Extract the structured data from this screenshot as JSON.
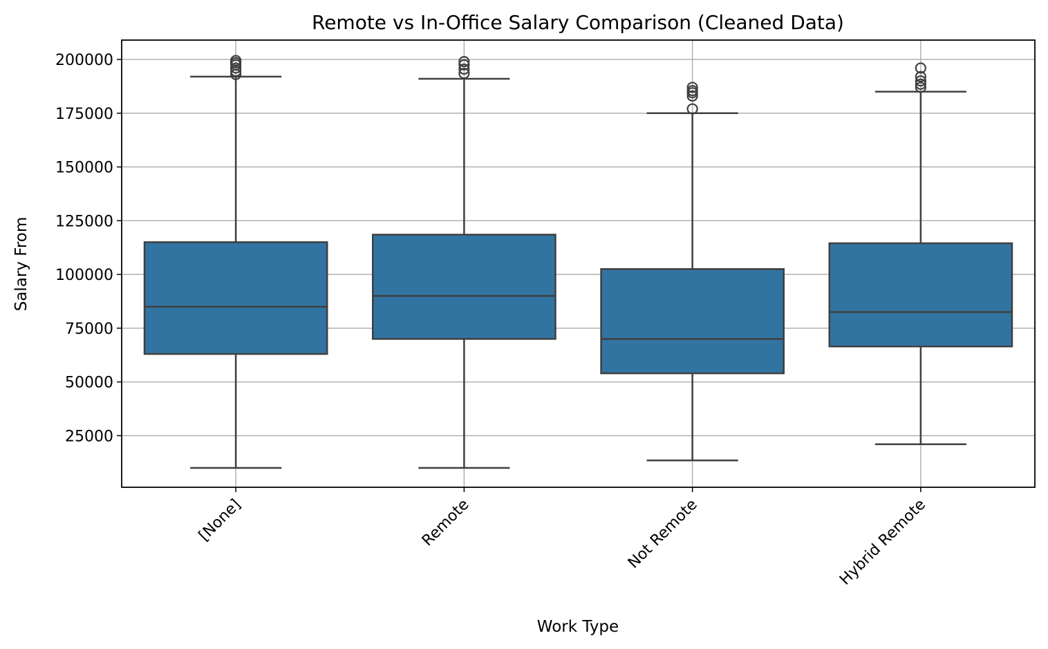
{
  "chart_data": {
    "type": "box",
    "title": "Remote vs In-Office Salary Comparison (Cleaned Data)",
    "xlabel": "Work Type",
    "ylabel": "Salary From",
    "ylim": [
      1000,
      209000
    ],
    "yticks": [
      25000,
      50000,
      75000,
      100000,
      125000,
      150000,
      175000,
      200000
    ],
    "grid": true,
    "categories": [
      "[None]",
      "Remote",
      "Not Remote",
      "Hybrid Remote"
    ],
    "boxes": [
      {
        "category": "[None]",
        "whislo": 10000,
        "q1": 63000,
        "med": 85000,
        "q3": 115000,
        "whishi": 192000,
        "fliers": [
          193000,
          194500,
          196000,
          197500,
          198500,
          199500
        ]
      },
      {
        "category": "Remote",
        "whislo": 10000,
        "q1": 70000,
        "med": 90000,
        "q3": 118500,
        "whishi": 191000,
        "fliers": [
          193500,
          195500,
          197500,
          199000
        ]
      },
      {
        "category": "Not Remote",
        "whislo": 13500,
        "q1": 54000,
        "med": 70000,
        "q3": 102500,
        "whishi": 175000,
        "fliers": [
          177000,
          183000,
          184500,
          185500,
          187000
        ]
      },
      {
        "category": "Hybrid Remote",
        "whislo": 21000,
        "q1": 66500,
        "med": 82500,
        "q3": 114500,
        "whishi": 185000,
        "fliers": [
          187000,
          188500,
          190000,
          192000,
          196000
        ]
      }
    ],
    "colors": {
      "box": "#3274a1",
      "line": "#3f3f3f",
      "grid": "#b0b0b0"
    }
  }
}
